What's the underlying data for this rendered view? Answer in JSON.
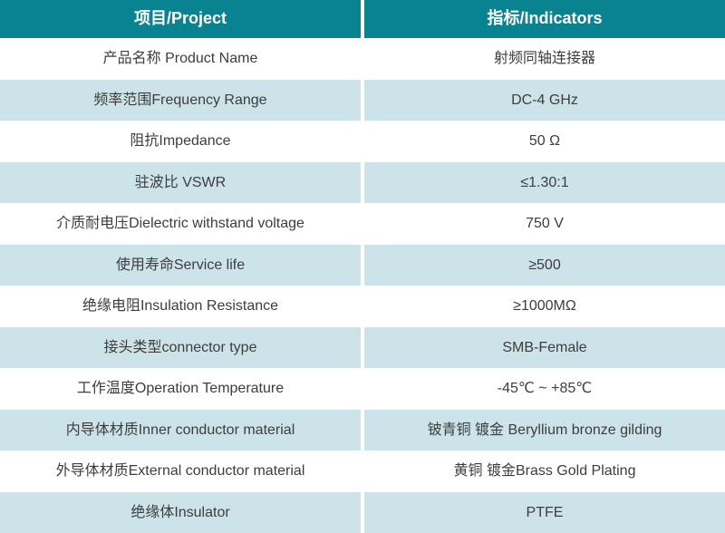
{
  "table": {
    "header": {
      "project": "项目/Project",
      "indicators": "指标/Indicators"
    },
    "rows": [
      {
        "project": "产品名称 Product Name",
        "indicator": "射频同轴连接器"
      },
      {
        "project": "频率范围Frequency Range",
        "indicator": "DC-4 GHz"
      },
      {
        "project": "阻抗Impedance",
        "indicator": "50 Ω"
      },
      {
        "project": "驻波比 VSWR",
        "indicator": "≤1.30:1"
      },
      {
        "project": "介质耐电压Dielectric withstand voltage",
        "indicator": "750 V"
      },
      {
        "project": "使用寿命Service life",
        "indicator": "≥500"
      },
      {
        "project": "绝缘电阻Insulation Resistance",
        "indicator": "≥1000MΩ"
      },
      {
        "project": "接头类型connector type",
        "indicator": "SMB-Female"
      },
      {
        "project": "工作温度Operation Temperature",
        "indicator": "-45℃ ~ +85℃"
      },
      {
        "project": "内导体材质Inner conductor material",
        "indicator": "铍青铜 镀金 Beryllium bronze gilding"
      },
      {
        "project": "外导体材质External conductor material",
        "indicator": "黄铜 镀金Brass Gold Plating"
      },
      {
        "project": "绝缘体Insulator",
        "indicator": "PTFE"
      }
    ]
  },
  "colors": {
    "header_bg": "#09838f",
    "header_text": "#ffffff",
    "row_alt_bg": "#cce4e9",
    "row_bg": "#ffffff",
    "body_text": "#3d3d3d"
  }
}
